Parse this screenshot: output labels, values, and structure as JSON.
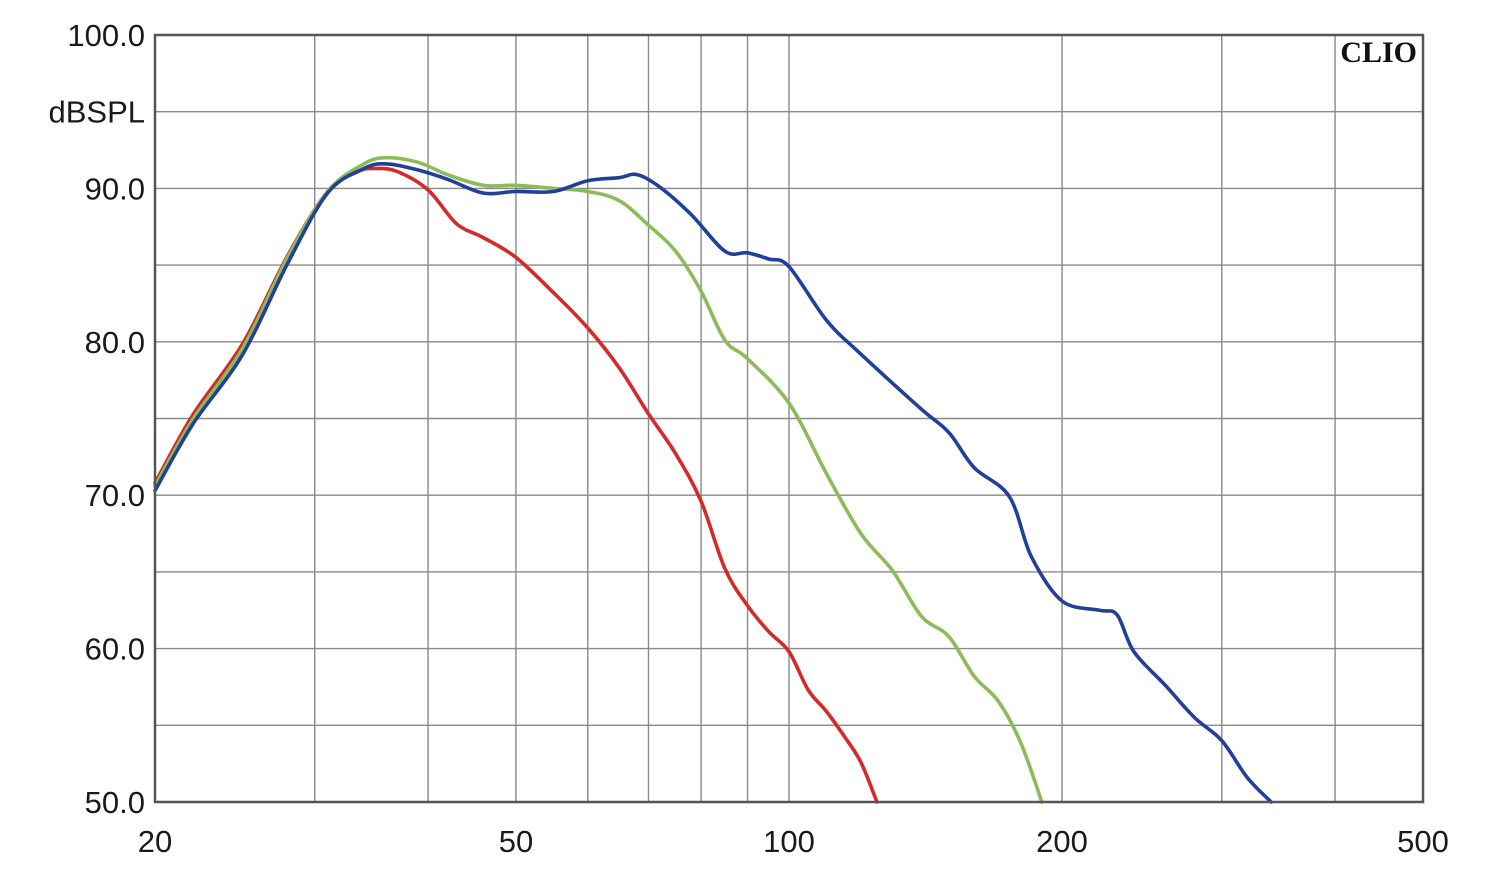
{
  "chart_data": {
    "type": "line",
    "title": "",
    "brand": "CLIO",
    "xlabel": "",
    "ylabel": "dBSPL",
    "x_scale": "log",
    "xlim": [
      20,
      500
    ],
    "ylim": [
      50,
      100
    ],
    "grid": true,
    "x_ticks": [
      20,
      50,
      100,
      200,
      500
    ],
    "x_tick_labels": [
      "20",
      "50",
      "100",
      "200",
      "500"
    ],
    "x_minor_gridlines": [
      30,
      40,
      60,
      70,
      80,
      90,
      300,
      400
    ],
    "y_ticks": [
      50,
      60,
      70,
      80,
      90,
      100
    ],
    "y_tick_labels": [
      "50.0",
      "60.0",
      "70.0",
      "80.0",
      "90.0",
      "100.0"
    ],
    "y_minor_gridlines": [
      55,
      65,
      75,
      85,
      95
    ],
    "series": [
      {
        "color": "#d42a2a",
        "x": [
          20,
          22,
          25,
          28,
          31,
          33.5,
          35,
          37,
          40,
          43,
          46,
          50,
          55,
          60,
          65,
          70,
          75,
          80,
          85,
          90,
          95,
          100,
          105,
          110,
          115,
          120,
          125
        ],
        "y": [
          70.8,
          75.2,
          79.9,
          85.6,
          89.8,
          91.1,
          91.3,
          91.1,
          89.9,
          87.7,
          86.8,
          85.5,
          83.2,
          80.9,
          78.3,
          75.3,
          72.7,
          69.6,
          65.2,
          62.8,
          61.1,
          59.8,
          57.3,
          55.9,
          54.3,
          52.6,
          50.0
        ]
      },
      {
        "color": "#8cbc5a",
        "x": [
          20,
          22,
          25,
          28,
          31,
          34,
          36,
          39,
          42,
          46,
          50,
          55,
          60,
          65,
          70,
          75,
          80,
          85,
          90,
          100,
          110,
          120,
          130,
          140,
          150,
          160,
          170,
          180,
          190
        ],
        "y": [
          70.6,
          74.9,
          79.6,
          85.5,
          89.8,
          91.6,
          92.0,
          91.7,
          90.9,
          90.2,
          90.2,
          90.0,
          89.8,
          89.2,
          87.6,
          85.9,
          83.3,
          80.1,
          78.9,
          76.0,
          71.4,
          67.5,
          65.1,
          62.1,
          60.8,
          58.2,
          56.6,
          53.9,
          50.0
        ]
      },
      {
        "color": "#22409a",
        "x": [
          20,
          22,
          25,
          28,
          31,
          34,
          36,
          39,
          42,
          46,
          50,
          55,
          60,
          65,
          68,
          72,
          78,
          85,
          90,
          95,
          100,
          110,
          120,
          140,
          150,
          160,
          175,
          185,
          200,
          220,
          230,
          240,
          260,
          280,
          300,
          320,
          340
        ],
        "y": [
          70.3,
          74.6,
          79.2,
          85.1,
          89.7,
          91.3,
          91.6,
          91.2,
          90.6,
          89.7,
          89.8,
          89.8,
          90.5,
          90.7,
          90.9,
          90.1,
          88.3,
          85.9,
          85.8,
          85.4,
          84.9,
          81.4,
          79.2,
          75.6,
          74.1,
          71.8,
          69.9,
          66.0,
          63.1,
          62.5,
          62.2,
          59.8,
          57.6,
          55.5,
          54.0,
          51.6,
          50.0
        ]
      }
    ]
  }
}
